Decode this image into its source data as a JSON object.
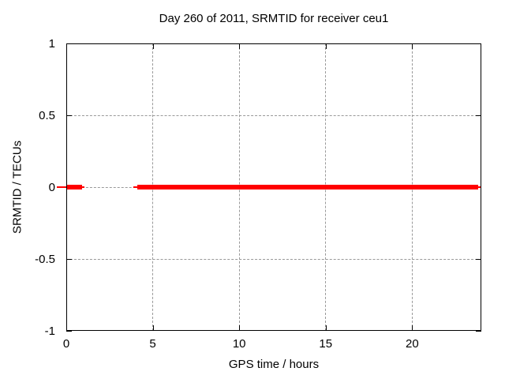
{
  "chart_data": {
    "type": "line",
    "title": "Day 260 of 2011, SRMTID for receiver ceu1",
    "xlabel": "GPS time / hours",
    "ylabel": "SRMTID / TECUs",
    "xlim": [
      0,
      24
    ],
    "ylim": [
      -1,
      1
    ],
    "xticks": [
      0,
      5,
      10,
      15,
      20
    ],
    "yticks": [
      1,
      0.5,
      0,
      -0.5,
      -1
    ],
    "grid": true,
    "legend": "none",
    "series": [
      {
        "name": "SRMTID",
        "value": 0,
        "color": "#ff0000",
        "segments": [
          {
            "line": [
              -0.55,
              1.05
            ],
            "bold": [
              0.05,
              0.9
            ]
          },
          {
            "line": [
              3.9,
              24.0
            ],
            "bold": [
              4.1,
              23.8
            ]
          }
        ]
      }
    ]
  },
  "colors": {
    "series": "#ff0000",
    "grid": "#999999",
    "border": "#000000",
    "background": "#ffffff",
    "text": "#000000"
  }
}
